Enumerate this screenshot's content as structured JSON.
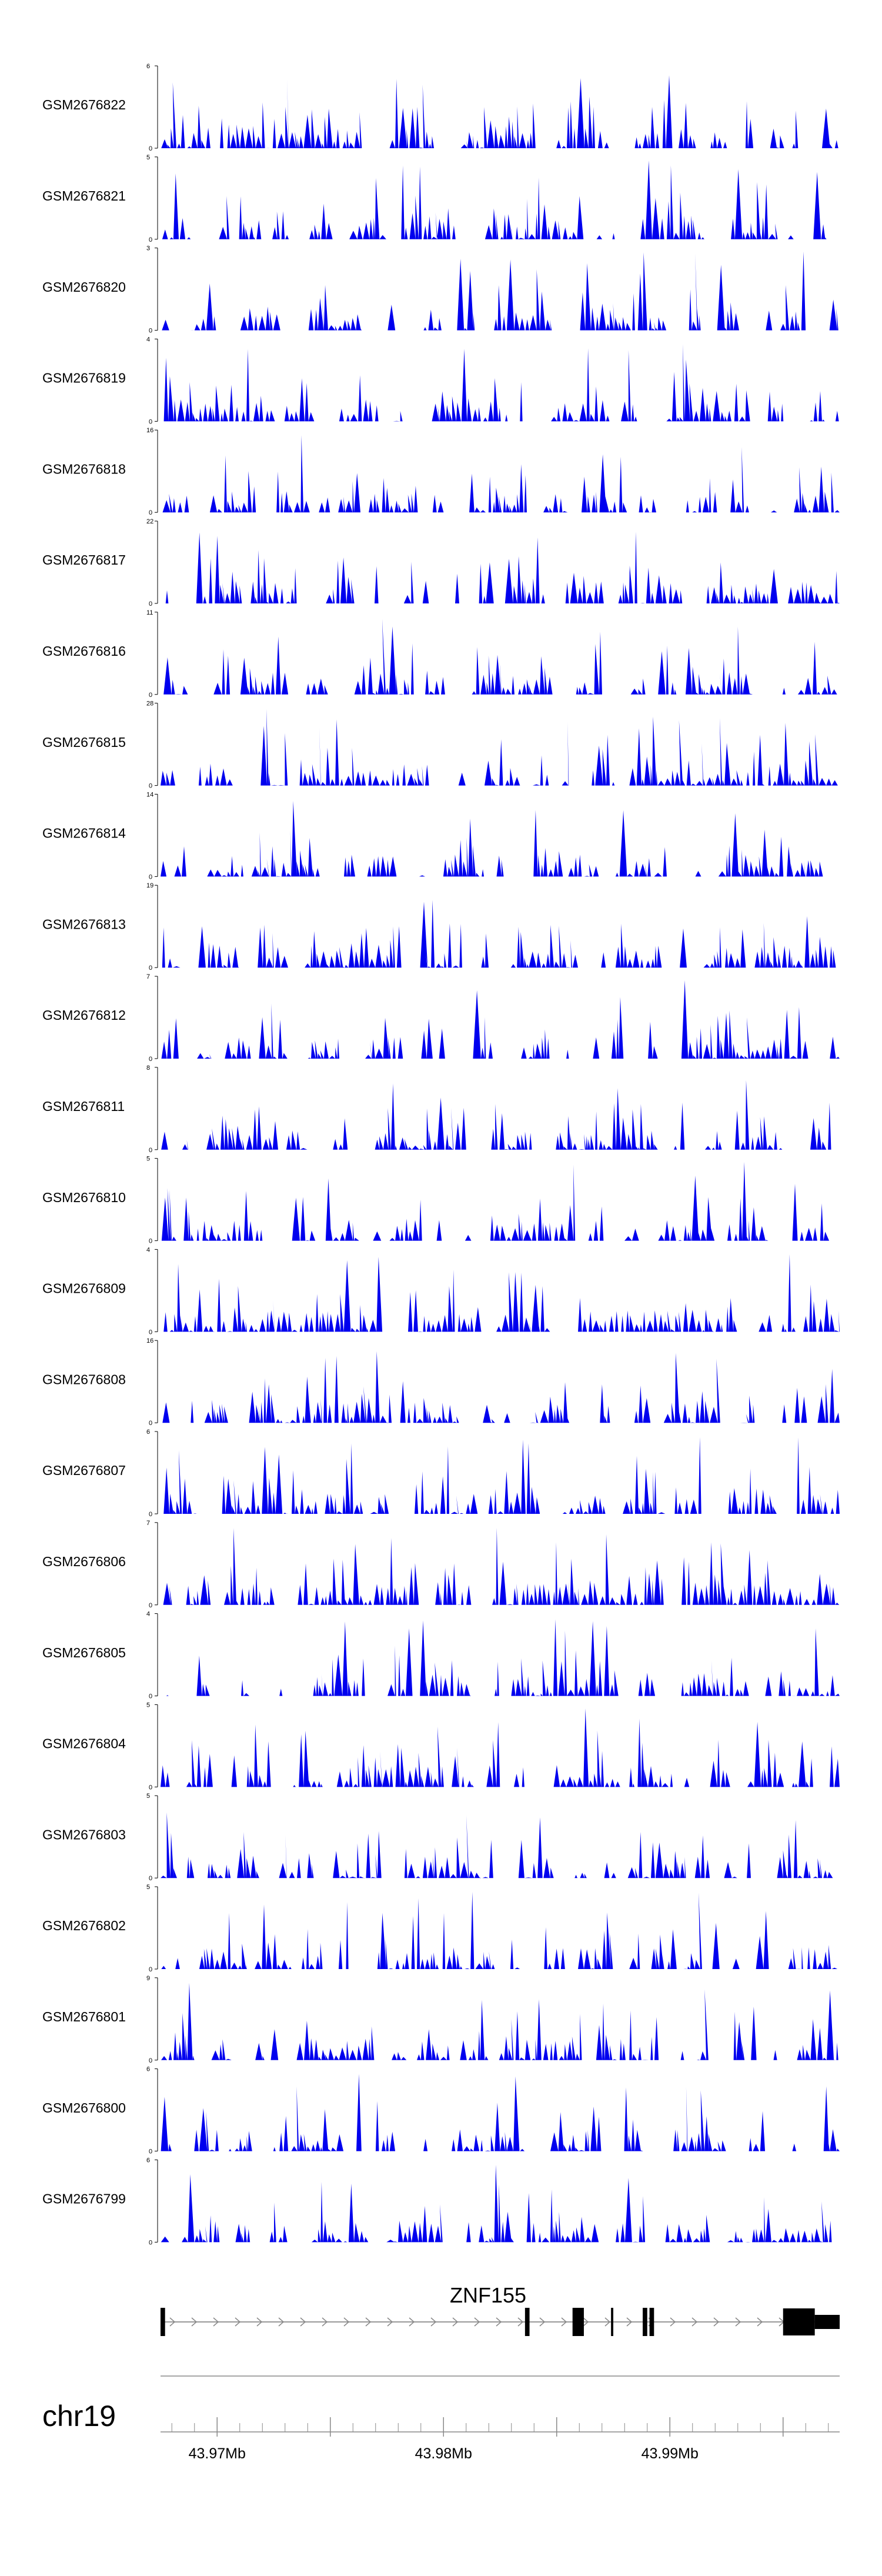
{
  "chart_data": {
    "type": "area",
    "title": "",
    "chromosome": "chr19",
    "x_axis": {
      "range_mb": [
        43.9675,
        43.9975
      ],
      "ticks_mb": [
        43.97,
        43.975,
        43.98,
        43.985,
        43.99,
        43.995
      ],
      "tick_labels": [
        {
          "value_mb": 43.97,
          "text": "43.97Mb"
        },
        {
          "value_mb": 43.98,
          "text": "43.98Mb"
        },
        {
          "value_mb": 43.99,
          "text": "43.99Mb"
        }
      ]
    },
    "fill_color": "#0000ee",
    "tracks": [
      {
        "name": "GSM2676822",
        "ymax": 6,
        "seed": 101
      },
      {
        "name": "GSM2676821",
        "ymax": 5,
        "seed": 102
      },
      {
        "name": "GSM2676820",
        "ymax": 3,
        "seed": 103
      },
      {
        "name": "GSM2676819",
        "ymax": 4,
        "seed": 104
      },
      {
        "name": "GSM2676818",
        "ymax": 16,
        "seed": 105
      },
      {
        "name": "GSM2676817",
        "ymax": 22,
        "seed": 106
      },
      {
        "name": "GSM2676816",
        "ymax": 11,
        "seed": 107
      },
      {
        "name": "GSM2676815",
        "ymax": 28,
        "seed": 108
      },
      {
        "name": "GSM2676814",
        "ymax": 14,
        "seed": 109
      },
      {
        "name": "GSM2676813",
        "ymax": 19,
        "seed": 110
      },
      {
        "name": "GSM2676812",
        "ymax": 7,
        "seed": 111
      },
      {
        "name": "GSM2676811",
        "ymax": 8,
        "seed": 112
      },
      {
        "name": "GSM2676810",
        "ymax": 5,
        "seed": 113
      },
      {
        "name": "GSM2676809",
        "ymax": 4,
        "seed": 114
      },
      {
        "name": "GSM2676808",
        "ymax": 16,
        "seed": 115
      },
      {
        "name": "GSM2676807",
        "ymax": 6,
        "seed": 116
      },
      {
        "name": "GSM2676806",
        "ymax": 7,
        "seed": 117
      },
      {
        "name": "GSM2676805",
        "ymax": 4,
        "seed": 118
      },
      {
        "name": "GSM2676804",
        "ymax": 5,
        "seed": 119
      },
      {
        "name": "GSM2676803",
        "ymax": 5,
        "seed": 120
      },
      {
        "name": "GSM2676802",
        "ymax": 5,
        "seed": 121
      },
      {
        "name": "GSM2676801",
        "ymax": 9,
        "seed": 122
      },
      {
        "name": "GSM2676800",
        "ymax": 6,
        "seed": 123
      },
      {
        "name": "GSM2676799",
        "ymax": 6,
        "seed": 124
      }
    ],
    "gene": {
      "name": "ZNF155",
      "strand": "+",
      "start_mb": 43.9675,
      "end_mb": 43.9975,
      "exons_mb": [
        [
          43.9675,
          43.9677
        ],
        [
          43.9836,
          43.9838
        ],
        [
          43.9857,
          43.9862
        ],
        [
          43.9874,
          43.9875
        ],
        [
          43.9888,
          43.989
        ],
        [
          43.9891,
          43.9893
        ],
        [
          43.995,
          43.9964
        ],
        [
          43.9964,
          43.9975
        ]
      ]
    }
  }
}
